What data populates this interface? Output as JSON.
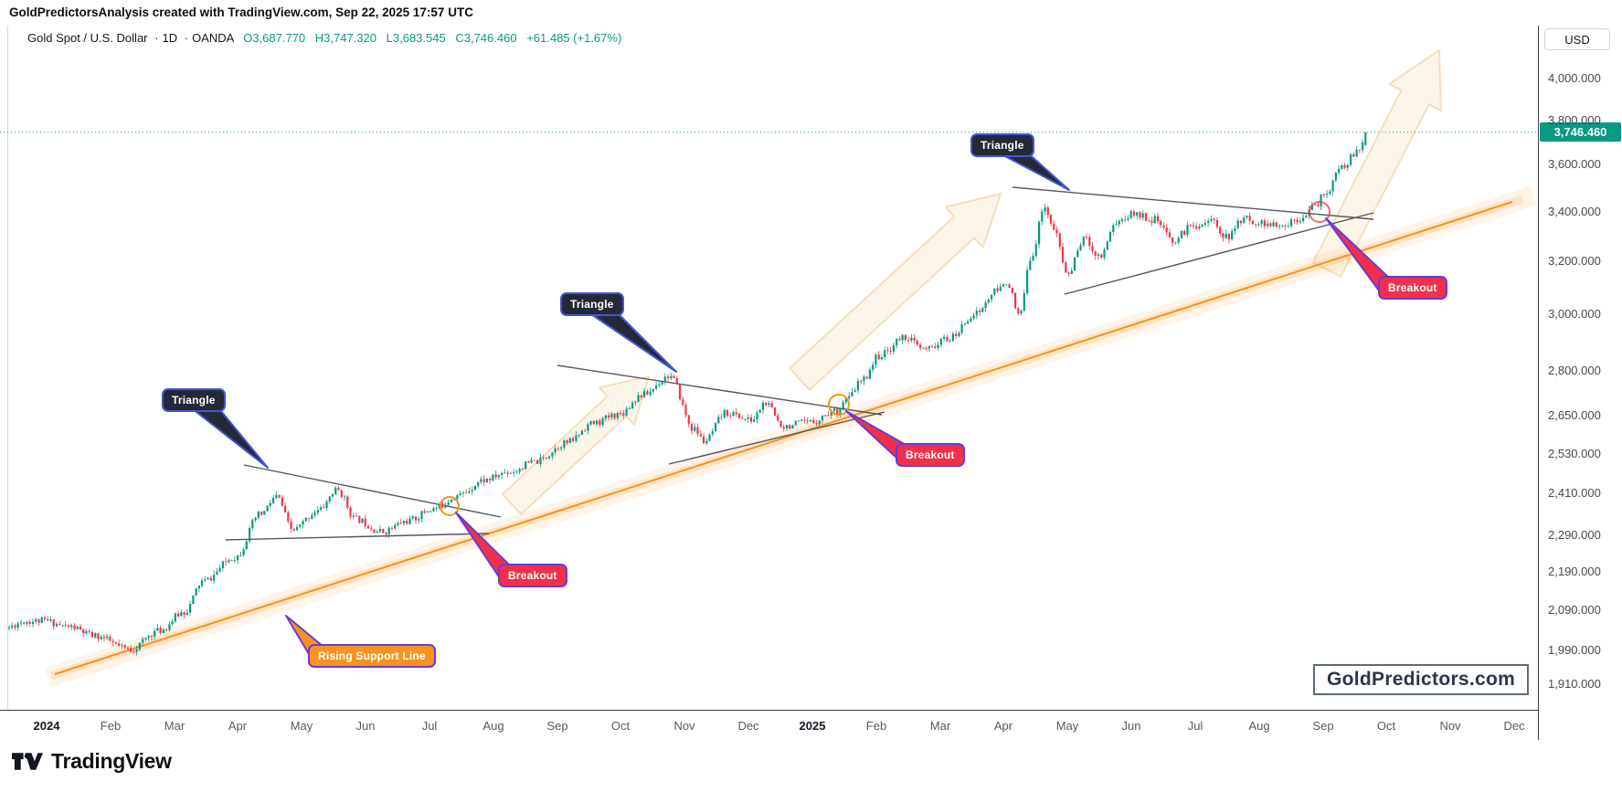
{
  "header": {
    "title": "GoldPredictorsAnalysis created with TradingView.com, Sep 22, 2025 17:57 UTC"
  },
  "legend": {
    "symbol": "Gold Spot / U.S. Dollar",
    "sep1": "·",
    "timeframe": "1D",
    "sep2": "·",
    "exchange": "OANDA",
    "o": "O3,687.770",
    "h": "H3,747.320",
    "l": "L3,683.545",
    "c": "C3,746.460",
    "change": "+61.485 (+1.67%)"
  },
  "price_scale": {
    "currency": "USD",
    "last_price": "3,746.460",
    "ticks": [
      4000,
      3800,
      3600,
      3400,
      3200,
      3000,
      2800,
      2650,
      2530,
      2410,
      2290,
      2190,
      2090,
      1990,
      1910
    ]
  },
  "time_scale": {
    "labels": [
      {
        "text": "2024",
        "bold": true
      },
      {
        "text": "Feb"
      },
      {
        "text": "Mar"
      },
      {
        "text": "Apr"
      },
      {
        "text": "May"
      },
      {
        "text": "Jun"
      },
      {
        "text": "Jul"
      },
      {
        "text": "Aug"
      },
      {
        "text": "Sep"
      },
      {
        "text": "Oct"
      },
      {
        "text": "Nov"
      },
      {
        "text": "Dec"
      },
      {
        "text": "2025",
        "bold": true
      },
      {
        "text": "Feb"
      },
      {
        "text": "Mar"
      },
      {
        "text": "Apr"
      },
      {
        "text": "May"
      },
      {
        "text": "Jun"
      },
      {
        "text": "Jul"
      },
      {
        "text": "Aug"
      },
      {
        "text": "Sep"
      },
      {
        "text": "Oct"
      },
      {
        "text": "Nov"
      },
      {
        "text": "Dec"
      }
    ]
  },
  "annotations": {
    "triangles": [
      "Triangle",
      "Triangle",
      "Triangle"
    ],
    "breakouts": [
      "Breakout",
      "Breakout",
      "Breakout"
    ],
    "support": "Rising Support Line",
    "watermark": "GoldPredictors.com"
  },
  "footer": {
    "brand": "TradingView"
  },
  "colors": {
    "up": "#089981",
    "down": "#F23645",
    "support_line": "#F7931A",
    "triangle_line": "#55575E",
    "badge": "#089981",
    "callout_dark": "#252936",
    "callout_red": "#F2304A",
    "callout_orange": "#F7931E",
    "arrow_fill": "#F8E8CF",
    "arrow_stroke": "#F3D9B0",
    "last_price_line": "#089981"
  },
  "chart_data": {
    "type": "candlestick",
    "title": "Gold Spot / U.S. Dollar, 1D, OANDA",
    "y_axis": {
      "scale": "log",
      "currency": "USD",
      "ticks": [
        4000,
        3800,
        3600,
        3400,
        3200,
        3000,
        2800,
        2650,
        2530,
        2410,
        2290,
        2190,
        2090,
        1990,
        1910
      ],
      "range_shown": [
        1910,
        4100
      ]
    },
    "x_axis": {
      "labels_start": "2024",
      "labels_end": "Dec 2025",
      "data_end": "Sep 22, 2025"
    },
    "last_candle": {
      "open": 3687.77,
      "high": 3747.32,
      "low": 3683.545,
      "close": 3746.46,
      "change": 61.485,
      "change_pct": 1.67
    },
    "price_keyframes_months_since_jan2024": [
      [
        -0.6,
        2045
      ],
      [
        -0.3,
        2062
      ],
      [
        0,
        2063
      ],
      [
        0.4,
        2048
      ],
      [
        0.8,
        2025
      ],
      [
        1.35,
        1992
      ],
      [
        1.8,
        2038
      ],
      [
        2.2,
        2085
      ],
      [
        2.5,
        2165
      ],
      [
        3,
        2230
      ],
      [
        3.4,
        2350
      ],
      [
        3.65,
        2400
      ],
      [
        3.9,
        2305
      ],
      [
        4.3,
        2360
      ],
      [
        4.6,
        2420
      ],
      [
        4.9,
        2335
      ],
      [
        5.3,
        2300
      ],
      [
        5.7,
        2330
      ],
      [
        6.1,
        2365
      ],
      [
        6.5,
        2405
      ],
      [
        6.9,
        2450
      ],
      [
        7.3,
        2475
      ],
      [
        7.7,
        2505
      ],
      [
        8.2,
        2565
      ],
      [
        8.6,
        2625
      ],
      [
        9,
        2655
      ],
      [
        9.4,
        2720
      ],
      [
        9.8,
        2782
      ],
      [
        10.2,
        2605
      ],
      [
        10.35,
        2568
      ],
      [
        10.7,
        2660
      ],
      [
        11.1,
        2635
      ],
      [
        11.3,
        2690
      ],
      [
        11.6,
        2618
      ],
      [
        12,
        2628
      ],
      [
        12.4,
        2665
      ],
      [
        12.6,
        2705
      ],
      [
        12.8,
        2762
      ],
      [
        13.1,
        2852
      ],
      [
        13.5,
        2918
      ],
      [
        13.8,
        2872
      ],
      [
        14.2,
        2912
      ],
      [
        14.6,
        3002
      ],
      [
        14.95,
        3088
      ],
      [
        15.1,
        3122
      ],
      [
        15.28,
        2992
      ],
      [
        15.5,
        3235
      ],
      [
        15.68,
        3428
      ],
      [
        15.82,
        3330
      ],
      [
        16.05,
        3150
      ],
      [
        16.3,
        3290
      ],
      [
        16.55,
        3220
      ],
      [
        16.8,
        3355
      ],
      [
        17.1,
        3392
      ],
      [
        17.4,
        3368
      ],
      [
        17.7,
        3282
      ],
      [
        18,
        3342
      ],
      [
        18.3,
        3362
      ],
      [
        18.55,
        3295
      ],
      [
        18.8,
        3372
      ],
      [
        19.1,
        3352
      ],
      [
        19.4,
        3335
      ],
      [
        19.65,
        3372
      ],
      [
        19.9,
        3418
      ],
      [
        20.1,
        3482
      ],
      [
        20.35,
        3592
      ],
      [
        20.55,
        3648
      ],
      [
        20.7,
        3690
      ]
    ],
    "annotations": {
      "triangle_patterns": 3,
      "breakout_points": [
        {
          "date_approx": "Jul 2024",
          "price": 2400
        },
        {
          "date_approx": "Jan 2025",
          "price": 2690
        },
        {
          "date_approx": "Sep 2025",
          "price": 3400
        }
      ],
      "support_line": {
        "label": "Rising Support Line",
        "from_price_approx": 1985,
        "to_price_approx": 3420
      }
    }
  }
}
